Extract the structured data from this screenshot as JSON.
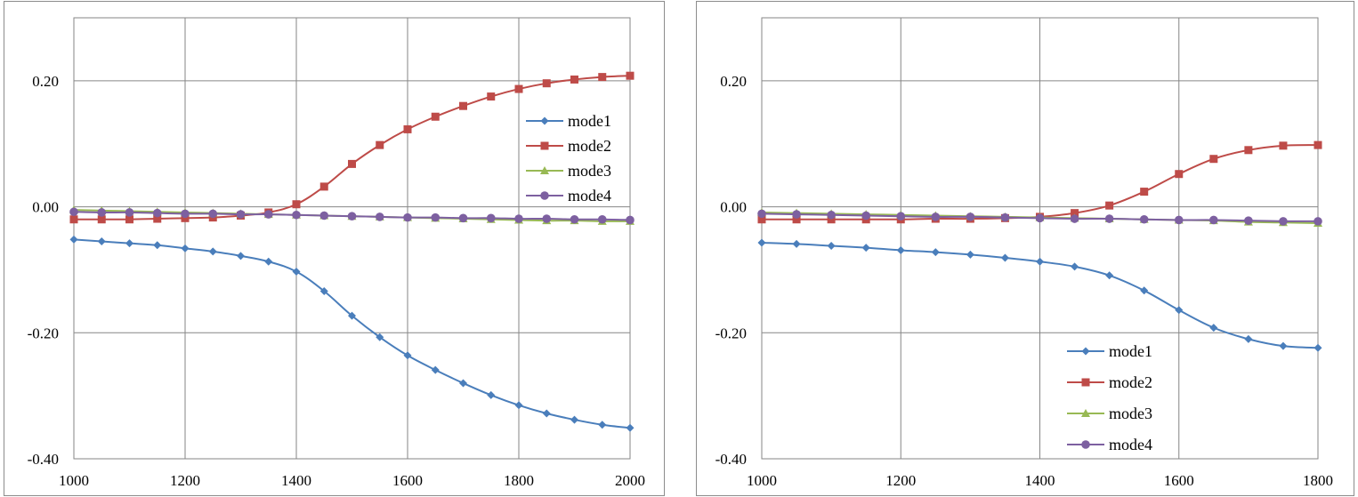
{
  "chart_data": [
    {
      "type": "line",
      "title": "",
      "xlabel": "",
      "ylabel": "",
      "xlim": [
        1000,
        2000
      ],
      "ylim": [
        -0.4,
        0.3
      ],
      "x_ticks": [
        "1000",
        "1200",
        "1400",
        "1600",
        "1800",
        "2000"
      ],
      "y_ticks": [
        "0.20",
        "0.00",
        "-0.20",
        "-0.40"
      ],
      "grid": true,
      "legend": "right-middle",
      "x": [
        1000,
        1050,
        1100,
        1150,
        1200,
        1250,
        1300,
        1350,
        1400,
        1450,
        1500,
        1550,
        1600,
        1650,
        1700,
        1750,
        1800,
        1850,
        1900,
        1950,
        2000
      ],
      "series": [
        {
          "name": "mode1",
          "color": "#4a7ebb",
          "marker": "diamond",
          "values": [
            -0.052,
            -0.055,
            -0.058,
            -0.061,
            -0.066,
            -0.071,
            -0.078,
            -0.087,
            -0.103,
            -0.134,
            -0.173,
            -0.207,
            -0.236,
            -0.259,
            -0.28,
            -0.299,
            -0.315,
            -0.328,
            -0.338,
            -0.346,
            -0.351
          ]
        },
        {
          "name": "mode2",
          "color": "#be4b48",
          "marker": "square",
          "values": [
            -0.02,
            -0.02,
            -0.02,
            -0.019,
            -0.018,
            -0.017,
            -0.014,
            -0.009,
            0.004,
            0.032,
            0.068,
            0.098,
            0.123,
            0.143,
            0.16,
            0.175,
            0.187,
            0.196,
            0.202,
            0.206,
            0.208
          ]
        },
        {
          "name": "mode3",
          "color": "#98b954",
          "marker": "triangle",
          "values": [
            -0.005,
            -0.006,
            -0.007,
            -0.008,
            -0.009,
            -0.01,
            -0.011,
            -0.012,
            -0.013,
            -0.014,
            -0.015,
            -0.016,
            -0.017,
            -0.018,
            -0.019,
            -0.02,
            -0.021,
            -0.022,
            -0.022,
            -0.023,
            -0.023
          ]
        },
        {
          "name": "mode4",
          "color": "#7d60a0",
          "marker": "circle",
          "values": [
            -0.008,
            -0.009,
            -0.009,
            -0.01,
            -0.011,
            -0.011,
            -0.012,
            -0.012,
            -0.013,
            -0.014,
            -0.015,
            -0.016,
            -0.017,
            -0.017,
            -0.018,
            -0.018,
            -0.019,
            -0.019,
            -0.02,
            -0.02,
            -0.021
          ]
        }
      ]
    },
    {
      "type": "line",
      "title": "",
      "xlabel": "",
      "ylabel": "",
      "xlim": [
        1000,
        1800
      ],
      "ylim": [
        -0.4,
        0.3
      ],
      "x_ticks": [
        "1000",
        "1200",
        "1400",
        "1600",
        "1800"
      ],
      "y_ticks": [
        "0.20",
        "0.00",
        "-0.20",
        "-0.40"
      ],
      "grid": true,
      "legend": "bottom-right",
      "x": [
        1000,
        1050,
        1100,
        1150,
        1200,
        1250,
        1300,
        1350,
        1400,
        1450,
        1500,
        1550,
        1600,
        1650,
        1700,
        1750,
        1800
      ],
      "series": [
        {
          "name": "mode1",
          "color": "#4a7ebb",
          "marker": "diamond",
          "values": [
            -0.057,
            -0.059,
            -0.062,
            -0.065,
            -0.069,
            -0.072,
            -0.076,
            -0.081,
            -0.087,
            -0.095,
            -0.109,
            -0.133,
            -0.164,
            -0.192,
            -0.21,
            -0.221,
            -0.224
          ]
        },
        {
          "name": "mode2",
          "color": "#be4b48",
          "marker": "square",
          "values": [
            -0.02,
            -0.02,
            -0.02,
            -0.02,
            -0.02,
            -0.019,
            -0.019,
            -0.018,
            -0.016,
            -0.01,
            0.002,
            0.024,
            0.052,
            0.076,
            0.09,
            0.097,
            0.098
          ]
        },
        {
          "name": "mode3",
          "color": "#98b954",
          "marker": "triangle",
          "values": [
            -0.009,
            -0.01,
            -0.011,
            -0.012,
            -0.013,
            -0.014,
            -0.015,
            -0.016,
            -0.017,
            -0.018,
            -0.019,
            -0.02,
            -0.021,
            -0.022,
            -0.024,
            -0.025,
            -0.026
          ]
        },
        {
          "name": "mode4",
          "color": "#7d60a0",
          "marker": "circle",
          "values": [
            -0.011,
            -0.012,
            -0.013,
            -0.014,
            -0.015,
            -0.016,
            -0.016,
            -0.017,
            -0.018,
            -0.019,
            -0.019,
            -0.02,
            -0.021,
            -0.021,
            -0.022,
            -0.023,
            -0.023
          ]
        }
      ]
    }
  ]
}
